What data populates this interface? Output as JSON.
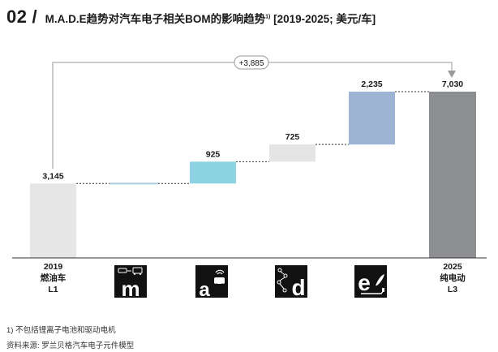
{
  "header": {
    "number": "02",
    "slash": "/",
    "title": "M.A.D.E趋势对汽车电子相关BOM的影响趋势",
    "title_sup": "1)",
    "title_range": " [2019-2025; 美元/车]"
  },
  "colors": {
    "start_bar": "#e6e6e6",
    "m_bar": "#a8cfe0",
    "a_bar": "#8dd3e3",
    "d_bar": "#e4e4e4",
    "e_bar": "#9cb3d4",
    "end_bar": "#8c8e91",
    "axis": "#333333",
    "bracket": "#9a9a9a"
  },
  "chart_data": {
    "type": "waterfall",
    "unit": "美元/车",
    "ylim": [
      0,
      7030
    ],
    "bars": [
      {
        "key": "start",
        "kind": "total",
        "value": 3145,
        "label": "3,145"
      },
      {
        "key": "m",
        "kind": "delta",
        "value": 0,
        "label": ""
      },
      {
        "key": "a",
        "kind": "delta",
        "value": 925,
        "label": "925"
      },
      {
        "key": "d",
        "kind": "delta",
        "value": 725,
        "label": "725"
      },
      {
        "key": "e",
        "kind": "delta",
        "value": 2235,
        "label": "2,235"
      },
      {
        "key": "end",
        "kind": "total",
        "value": 7030,
        "label": "7,030"
      }
    ],
    "difference_label": "+3,885"
  },
  "categories": {
    "start": {
      "year": "2019",
      "name": "燃油车",
      "level": "L1"
    },
    "end": {
      "year": "2025",
      "name": "纯电动",
      "level": "L3"
    },
    "icons": [
      {
        "letter": "m",
        "icon": "mobility-icon"
      },
      {
        "letter": "a",
        "icon": "autonomous-icon"
      },
      {
        "letter": "d",
        "icon": "digitalization-icon"
      },
      {
        "letter": "e",
        "icon": "electrification-icon"
      }
    ]
  },
  "footnotes": {
    "note1": "1) 不包括锂离子电池和驱动电机",
    "source": "资料来源: 罗兰贝格汽车电子元件模型"
  }
}
